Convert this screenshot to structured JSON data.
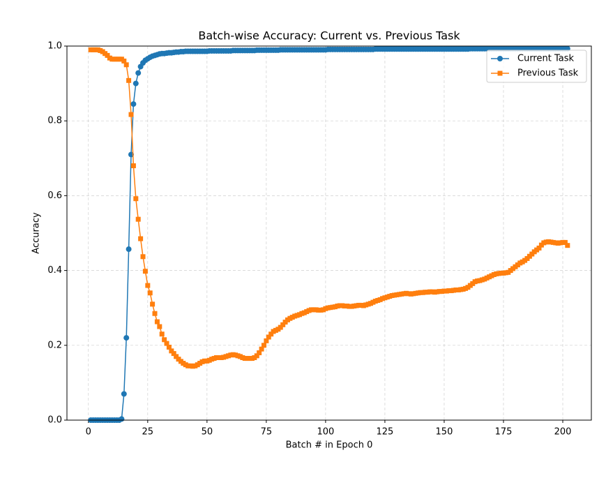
{
  "chart_data": {
    "type": "line",
    "title": "Batch-wise Accuracy: Current vs. Previous Task",
    "x_label": "Batch # in Epoch 0",
    "y_label": "Accuracy",
    "x": [
      1,
      2,
      3,
      4,
      5,
      6,
      7,
      8,
      9,
      10,
      11,
      12,
      13,
      14,
      15,
      16,
      17,
      18,
      19,
      20,
      21,
      22,
      23,
      24,
      25,
      26,
      27,
      28,
      29,
      30,
      31,
      32,
      33,
      34,
      35,
      36,
      37,
      38,
      39,
      40,
      41,
      42,
      43,
      44,
      45,
      46,
      47,
      48,
      49,
      50,
      51,
      52,
      53,
      54,
      55,
      56,
      57,
      58,
      59,
      60,
      61,
      62,
      63,
      64,
      65,
      66,
      67,
      68,
      69,
      70,
      71,
      72,
      73,
      74,
      75,
      76,
      77,
      78,
      79,
      80,
      81,
      82,
      83,
      84,
      85,
      86,
      87,
      88,
      89,
      90,
      91,
      92,
      93,
      94,
      95,
      96,
      97,
      98,
      99,
      100,
      101,
      102,
      103,
      104,
      105,
      106,
      107,
      108,
      109,
      110,
      111,
      112,
      113,
      114,
      115,
      116,
      117,
      118,
      119,
      120,
      121,
      122,
      123,
      124,
      125,
      126,
      127,
      128,
      129,
      130,
      131,
      132,
      133,
      134,
      135,
      136,
      137,
      138,
      139,
      140,
      141,
      142,
      143,
      144,
      145,
      146,
      147,
      148,
      149,
      150,
      151,
      152,
      153,
      154,
      155,
      156,
      157,
      158,
      159,
      160,
      161,
      162,
      163,
      164,
      165,
      166,
      167,
      168,
      169,
      170,
      171,
      172,
      173,
      174,
      175,
      176,
      177,
      178,
      179,
      180,
      181,
      182,
      183,
      184,
      185,
      186,
      187,
      188,
      189,
      190,
      191,
      192,
      193,
      194,
      195,
      196,
      197,
      198,
      199,
      200,
      201,
      202
    ],
    "series": [
      {
        "name": "Current Task",
        "color": "#1f77b4",
        "marker": "circle",
        "values": [
          0.0,
          0.0,
          0.0,
          0.0,
          0.0,
          0.0,
          0.0,
          0.0,
          0.0,
          0.0,
          0.0,
          0.0,
          0.0,
          0.003,
          0.07,
          0.22,
          0.457,
          0.71,
          0.845,
          0.9,
          0.928,
          0.945,
          0.955,
          0.962,
          0.966,
          0.97,
          0.973,
          0.975,
          0.977,
          0.979,
          0.98,
          0.98,
          0.981,
          0.982,
          0.982,
          0.983,
          0.984,
          0.984,
          0.985,
          0.985,
          0.986,
          0.986,
          0.986,
          0.986,
          0.986,
          0.986,
          0.986,
          0.986,
          0.986,
          0.986,
          0.987,
          0.987,
          0.987,
          0.987,
          0.987,
          0.987,
          0.987,
          0.987,
          0.987,
          0.987,
          0.988,
          0.988,
          0.988,
          0.988,
          0.988,
          0.988,
          0.988,
          0.988,
          0.988,
          0.988,
          0.989,
          0.989,
          0.989,
          0.989,
          0.989,
          0.989,
          0.989,
          0.989,
          0.989,
          0.989,
          0.99,
          0.99,
          0.99,
          0.99,
          0.99,
          0.99,
          0.99,
          0.99,
          0.99,
          0.99,
          0.99,
          0.99,
          0.99,
          0.99,
          0.99,
          0.99,
          0.99,
          0.99,
          0.99,
          0.99,
          0.991,
          0.991,
          0.991,
          0.991,
          0.991,
          0.991,
          0.991,
          0.991,
          0.991,
          0.991,
          0.991,
          0.991,
          0.991,
          0.991,
          0.991,
          0.991,
          0.991,
          0.991,
          0.991,
          0.991,
          0.992,
          0.992,
          0.992,
          0.992,
          0.992,
          0.992,
          0.992,
          0.992,
          0.992,
          0.992,
          0.992,
          0.992,
          0.992,
          0.992,
          0.992,
          0.992,
          0.992,
          0.992,
          0.992,
          0.992,
          0.992,
          0.992,
          0.992,
          0.992,
          0.992,
          0.992,
          0.992,
          0.992,
          0.992,
          0.992,
          0.992,
          0.992,
          0.992,
          0.992,
          0.992,
          0.992,
          0.992,
          0.992,
          0.992,
          0.992,
          0.993,
          0.993,
          0.993,
          0.993,
          0.993,
          0.993,
          0.993,
          0.993,
          0.993,
          0.993,
          0.993,
          0.993,
          0.993,
          0.993,
          0.993,
          0.993,
          0.993,
          0.993,
          0.993,
          0.993,
          0.993,
          0.993,
          0.993,
          0.993,
          0.993,
          0.993,
          0.993,
          0.993,
          0.993,
          0.993,
          0.993,
          0.993,
          0.993,
          0.993,
          0.993,
          0.993,
          0.993,
          0.993,
          0.993,
          0.993,
          0.993,
          0.993
        ]
      },
      {
        "name": "Previous Task",
        "color": "#ff7f0e",
        "marker": "square",
        "values": [
          0.99,
          0.99,
          0.99,
          0.99,
          0.988,
          0.985,
          0.98,
          0.975,
          0.968,
          0.965,
          0.965,
          0.965,
          0.965,
          0.965,
          0.96,
          0.95,
          0.908,
          0.817,
          0.68,
          0.592,
          0.537,
          0.485,
          0.437,
          0.398,
          0.36,
          0.34,
          0.31,
          0.285,
          0.263,
          0.25,
          0.23,
          0.215,
          0.205,
          0.195,
          0.185,
          0.178,
          0.17,
          0.163,
          0.157,
          0.152,
          0.148,
          0.145,
          0.145,
          0.144,
          0.145,
          0.148,
          0.152,
          0.156,
          0.158,
          0.158,
          0.16,
          0.163,
          0.165,
          0.167,
          0.167,
          0.167,
          0.168,
          0.17,
          0.172,
          0.174,
          0.175,
          0.174,
          0.172,
          0.17,
          0.167,
          0.165,
          0.165,
          0.165,
          0.165,
          0.167,
          0.172,
          0.18,
          0.19,
          0.2,
          0.212,
          0.222,
          0.23,
          0.237,
          0.24,
          0.243,
          0.248,
          0.255,
          0.262,
          0.268,
          0.272,
          0.275,
          0.278,
          0.28,
          0.282,
          0.285,
          0.287,
          0.29,
          0.293,
          0.295,
          0.295,
          0.295,
          0.294,
          0.294,
          0.295,
          0.298,
          0.3,
          0.301,
          0.302,
          0.303,
          0.305,
          0.306,
          0.306,
          0.305,
          0.305,
          0.304,
          0.304,
          0.305,
          0.306,
          0.307,
          0.307,
          0.306,
          0.308,
          0.31,
          0.312,
          0.315,
          0.318,
          0.32,
          0.322,
          0.325,
          0.327,
          0.329,
          0.331,
          0.333,
          0.334,
          0.335,
          0.336,
          0.337,
          0.338,
          0.339,
          0.338,
          0.337,
          0.338,
          0.339,
          0.34,
          0.341,
          0.341,
          0.342,
          0.342,
          0.343,
          0.343,
          0.342,
          0.343,
          0.344,
          0.344,
          0.345,
          0.345,
          0.346,
          0.346,
          0.347,
          0.348,
          0.348,
          0.349,
          0.35,
          0.352,
          0.355,
          0.36,
          0.365,
          0.37,
          0.372,
          0.373,
          0.375,
          0.377,
          0.38,
          0.383,
          0.386,
          0.389,
          0.391,
          0.392,
          0.393,
          0.393,
          0.394,
          0.395,
          0.4,
          0.405,
          0.41,
          0.415,
          0.42,
          0.423,
          0.427,
          0.432,
          0.438,
          0.444,
          0.45,
          0.455,
          0.46,
          0.468,
          0.474,
          0.476,
          0.477,
          0.476,
          0.475,
          0.474,
          0.473,
          0.474,
          0.475,
          0.475,
          0.467
        ]
      }
    ],
    "xlim": [
      -9.05,
      212.05
    ],
    "ylim": [
      0,
      1
    ],
    "xticks": [
      0,
      25,
      50,
      75,
      100,
      125,
      150,
      175,
      200
    ],
    "yticks": [
      {
        "value": 0,
        "label": "0.0"
      },
      0.2,
      0.4,
      0.6,
      0.8,
      {
        "value": 1,
        "label": "1.0"
      }
    ],
    "grid": true,
    "legend": "upper right"
  }
}
